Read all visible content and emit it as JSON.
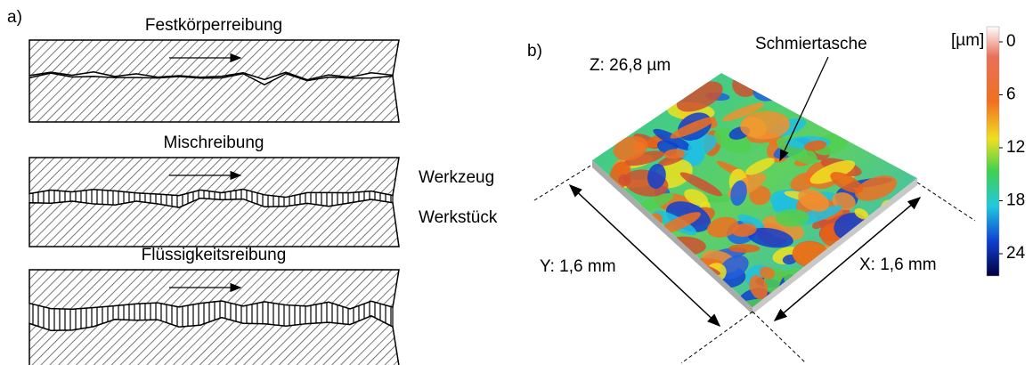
{
  "panel_a": {
    "label": "a)",
    "sections": [
      {
        "title": "Festkörperreibung"
      },
      {
        "title": "Mischreibung"
      },
      {
        "title": "Flüssigkeitsreibung"
      }
    ],
    "tool_label": "Werkzeug",
    "workpiece_label": "Werkstück"
  },
  "panel_b": {
    "label": "b)",
    "z_label": "Z: 26,8 µm",
    "annotation": "Schmiertasche",
    "x_label": "X: 1,6 mm",
    "y_label": "Y: 1,6 mm",
    "colorbar": {
      "unit": "[µm]",
      "ticks": [
        0,
        6,
        12,
        18,
        24
      ]
    }
  }
}
